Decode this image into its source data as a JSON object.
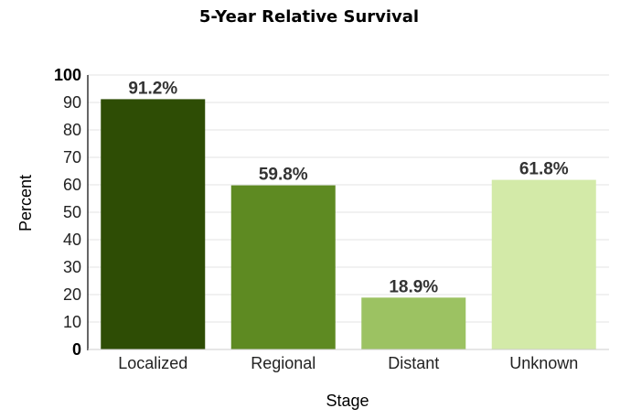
{
  "chart_data": {
    "type": "bar",
    "title": "5-Year Relative Survival",
    "xlabel": "Stage",
    "ylabel": "Percent",
    "categories": [
      "Localized",
      "Regional",
      "Distant",
      "Unknown"
    ],
    "values": [
      91.2,
      59.8,
      18.9,
      61.8
    ],
    "data_labels": [
      "91.2%",
      "59.8%",
      "18.9%",
      "61.8%"
    ],
    "colors": [
      "#2e4d05",
      "#5e8a22",
      "#9cc262",
      "#d3eaa8"
    ],
    "ylim": [
      0,
      100
    ],
    "yticks": [
      0,
      10,
      20,
      30,
      40,
      50,
      60,
      70,
      80,
      90,
      100
    ],
    "grid": true,
    "legend": "none"
  }
}
